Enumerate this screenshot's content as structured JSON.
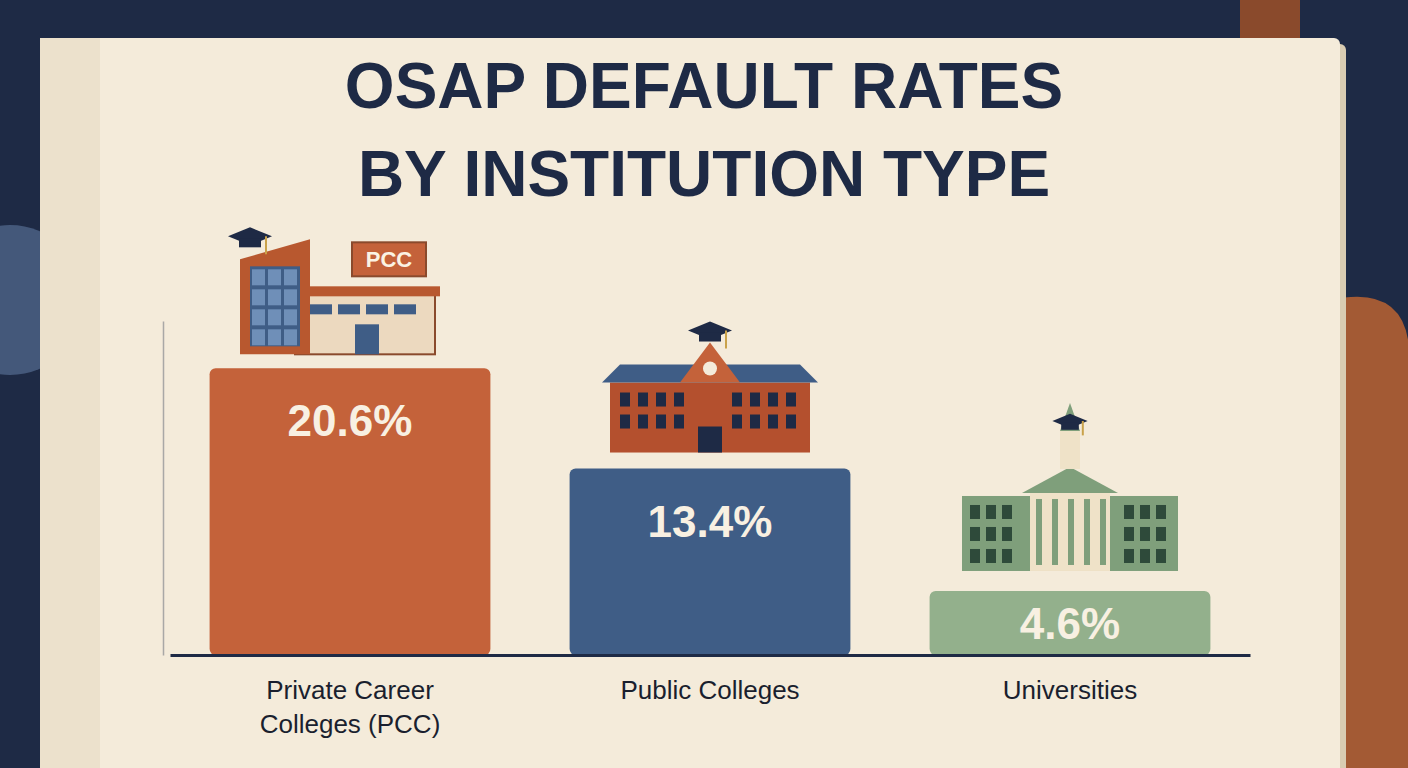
{
  "chart_data": {
    "type": "bar",
    "title": "OSAP DEFAULT RATES BY INSTITUTION TYPE",
    "categories": [
      "Private Career Colleges (PCC)",
      "Public Colleges",
      "Universities"
    ],
    "values": [
      20.6,
      13.4,
      4.6
    ],
    "value_labels": [
      "20.6%",
      "13.4%",
      "4.6%"
    ],
    "colors": [
      "#c4623a",
      "#3f5d86",
      "#93b08c"
    ],
    "ylim": [
      0,
      24
    ],
    "data_labels": true,
    "tick_labels": "x",
    "grid": false,
    "annotations": [
      "PCC"
    ]
  }
}
